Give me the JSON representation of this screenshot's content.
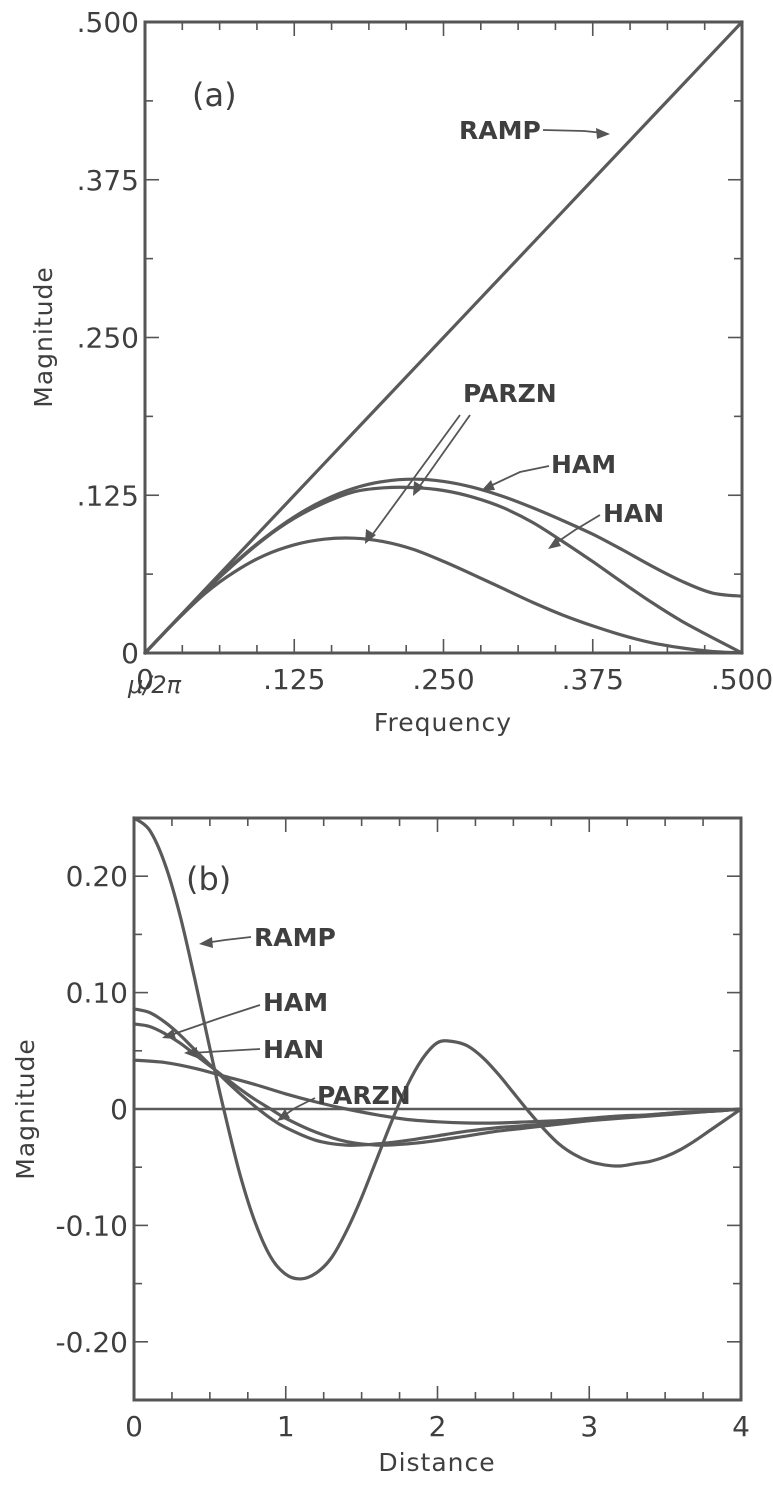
{
  "chart_data": [
    {
      "panel": "(a)",
      "type": "line",
      "xlabel": "Frequency",
      "ylabel": "Magnitude",
      "x_origin_label": "μ/2π",
      "xlim": [
        0,
        0.5
      ],
      "ylim": [
        0,
        0.5
      ],
      "x_ticks": [
        0,
        0.125,
        0.25,
        0.375,
        0.5
      ],
      "x_tick_labels": [
        "0",
        ".125",
        ".250",
        ".375",
        ".500"
      ],
      "y_ticks": [
        0,
        0.125,
        0.25,
        0.375,
        0.5
      ],
      "y_tick_labels": [
        "0",
        ".125",
        ".250",
        ".375",
        ".500"
      ],
      "grid": false,
      "series": [
        {
          "name": "RAMP",
          "x": [
            0,
            0.05,
            0.1,
            0.15,
            0.2,
            0.25,
            0.3,
            0.35,
            0.4,
            0.45,
            0.5
          ],
          "y": [
            0,
            0.05,
            0.1,
            0.15,
            0.2,
            0.25,
            0.3,
            0.35,
            0.4,
            0.45,
            0.5
          ]
        },
        {
          "name": "HAM",
          "x": [
            0,
            0.025,
            0.05,
            0.075,
            0.1,
            0.125,
            0.15,
            0.175,
            0.2,
            0.225,
            0.25,
            0.275,
            0.3,
            0.325,
            0.35,
            0.375,
            0.4,
            0.425,
            0.45,
            0.475,
            0.5
          ],
          "y": [
            0,
            0.0249,
            0.0489,
            0.0713,
            0.0911,
            0.1079,
            0.1211,
            0.1305,
            0.136,
            0.1377,
            0.136,
            0.1312,
            0.124,
            0.115,
            0.1049,
            0.0941,
            0.0817,
            0.0686,
            0.0567,
            0.0476,
            0.045
          ]
        },
        {
          "name": "HAN",
          "x": [
            0,
            0.025,
            0.05,
            0.075,
            0.1,
            0.125,
            0.15,
            0.175,
            0.2,
            0.225,
            0.25,
            0.275,
            0.3,
            0.325,
            0.35,
            0.375,
            0.4,
            0.425,
            0.45,
            0.475,
            0.5
          ],
          "y": [
            0,
            0.0247,
            0.0488,
            0.0707,
            0.0905,
            0.1067,
            0.1189,
            0.1277,
            0.1309,
            0.1311,
            0.1288,
            0.1234,
            0.1151,
            0.1033,
            0.0883,
            0.0724,
            0.0558,
            0.0397,
            0.025,
            0.0123,
            0.0
          ]
        },
        {
          "name": "PARZN",
          "x": [
            0,
            0.025,
            0.05,
            0.075,
            0.1,
            0.125,
            0.15,
            0.175,
            0.2,
            0.225,
            0.25,
            0.275,
            0.3,
            0.325,
            0.35,
            0.375,
            0.4,
            0.425,
            0.45,
            0.475,
            0.5
          ],
          "y": [
            0,
            0.0245,
            0.0469,
            0.0643,
            0.0773,
            0.0857,
            0.0902,
            0.091,
            0.0882,
            0.082,
            0.0726,
            0.062,
            0.051,
            0.04,
            0.03,
            0.0215,
            0.014,
            0.008,
            0.004,
            0.0012,
            0.0
          ]
        }
      ],
      "curve_labels": [
        "RAMP",
        "PARZN",
        "HAM",
        "HAN"
      ]
    },
    {
      "panel": "(b)",
      "type": "line",
      "xlabel": "Distance",
      "ylabel": "Magnitude",
      "xlim": [
        0,
        4
      ],
      "ylim": [
        -0.25,
        0.25
      ],
      "x_ticks": [
        0,
        1,
        2,
        3,
        4
      ],
      "x_tick_labels": [
        "0",
        "1",
        "2",
        "3",
        "4"
      ],
      "y_ticks": [
        0.2,
        0.1,
        0,
        -0.1,
        -0.2
      ],
      "y_tick_labels": [
        "0.20",
        "0.10",
        "0",
        "-0.10",
        "-0.20"
      ],
      "grid": false,
      "zero_line": true,
      "series": [
        {
          "name": "RAMP",
          "x": [
            0,
            0.1,
            0.2,
            0.3,
            0.4,
            0.5,
            0.6,
            0.7,
            0.8,
            0.9,
            1.0,
            1.1,
            1.2,
            1.3,
            1.4,
            1.5,
            1.6,
            1.7,
            1.8,
            1.9,
            2.0,
            2.1,
            2.2,
            2.3,
            2.4,
            2.5,
            2.6,
            2.7,
            2.8,
            2.9,
            3.0,
            3.1,
            3.2,
            3.3,
            3.4,
            3.5,
            3.6,
            3.7,
            3.8,
            3.9,
            4.0
          ],
          "y": [
            0.25,
            0.24,
            0.212,
            0.168,
            0.112,
            0.052,
            -0.005,
            -0.057,
            -0.098,
            -0.127,
            -0.142,
            -0.146,
            -0.141,
            -0.128,
            -0.105,
            -0.076,
            -0.043,
            -0.01,
            0.02,
            0.043,
            0.057,
            0.058,
            0.054,
            0.044,
            0.03,
            0.014,
            -0.002,
            -0.017,
            -0.03,
            -0.039,
            -0.045,
            -0.048,
            -0.049,
            -0.047,
            -0.045,
            -0.041,
            -0.035,
            -0.027,
            -0.018,
            -0.009,
            0.0
          ]
        },
        {
          "name": "HAM",
          "x": [
            0,
            0.1,
            0.2,
            0.3,
            0.4,
            0.5,
            0.6,
            0.7,
            0.8,
            0.9,
            1.0,
            1.2,
            1.4,
            1.6,
            1.8,
            2.0,
            2.2,
            2.4,
            2.6,
            2.8,
            3.0,
            3.2,
            3.4,
            3.6,
            3.8,
            4.0
          ],
          "y": [
            0.086,
            0.083,
            0.075,
            0.064,
            0.051,
            0.038,
            0.025,
            0.013,
            0.002,
            -0.008,
            -0.016,
            -0.027,
            -0.031,
            -0.03,
            -0.027,
            -0.023,
            -0.019,
            -0.016,
            -0.014,
            -0.012,
            -0.01,
            -0.008,
            -0.006,
            -0.004,
            -0.002,
            0.0
          ]
        },
        {
          "name": "HAN",
          "x": [
            0,
            0.1,
            0.2,
            0.3,
            0.4,
            0.5,
            0.6,
            0.7,
            0.8,
            0.9,
            1.0,
            1.2,
            1.4,
            1.6,
            1.8,
            2.0,
            2.2,
            2.4,
            2.6,
            2.8,
            3.0,
            3.2,
            3.4,
            3.6,
            3.8,
            4.0
          ],
          "y": [
            0.073,
            0.071,
            0.065,
            0.057,
            0.047,
            0.037,
            0.027,
            0.017,
            0.008,
            0.0,
            -0.008,
            -0.02,
            -0.028,
            -0.031,
            -0.03,
            -0.027,
            -0.023,
            -0.019,
            -0.016,
            -0.013,
            -0.01,
            -0.007,
            -0.005,
            -0.003,
            -0.002,
            0.0
          ]
        },
        {
          "name": "PARZN",
          "x": [
            0,
            0.2,
            0.4,
            0.6,
            0.8,
            1.0,
            1.2,
            1.4,
            1.6,
            1.8,
            2.0,
            2.2,
            2.4,
            2.6,
            2.8,
            3.0,
            3.2,
            3.4,
            3.6,
            3.8,
            4.0
          ],
          "y": [
            0.042,
            0.04,
            0.035,
            0.028,
            0.021,
            0.013,
            0.006,
            0.0,
            -0.005,
            -0.009,
            -0.011,
            -0.012,
            -0.012,
            -0.011,
            -0.01,
            -0.008,
            -0.006,
            -0.005,
            -0.003,
            -0.002,
            0.0
          ]
        }
      ],
      "curve_labels": [
        "RAMP",
        "HAM",
        "HAN",
        "PARZN"
      ]
    }
  ]
}
